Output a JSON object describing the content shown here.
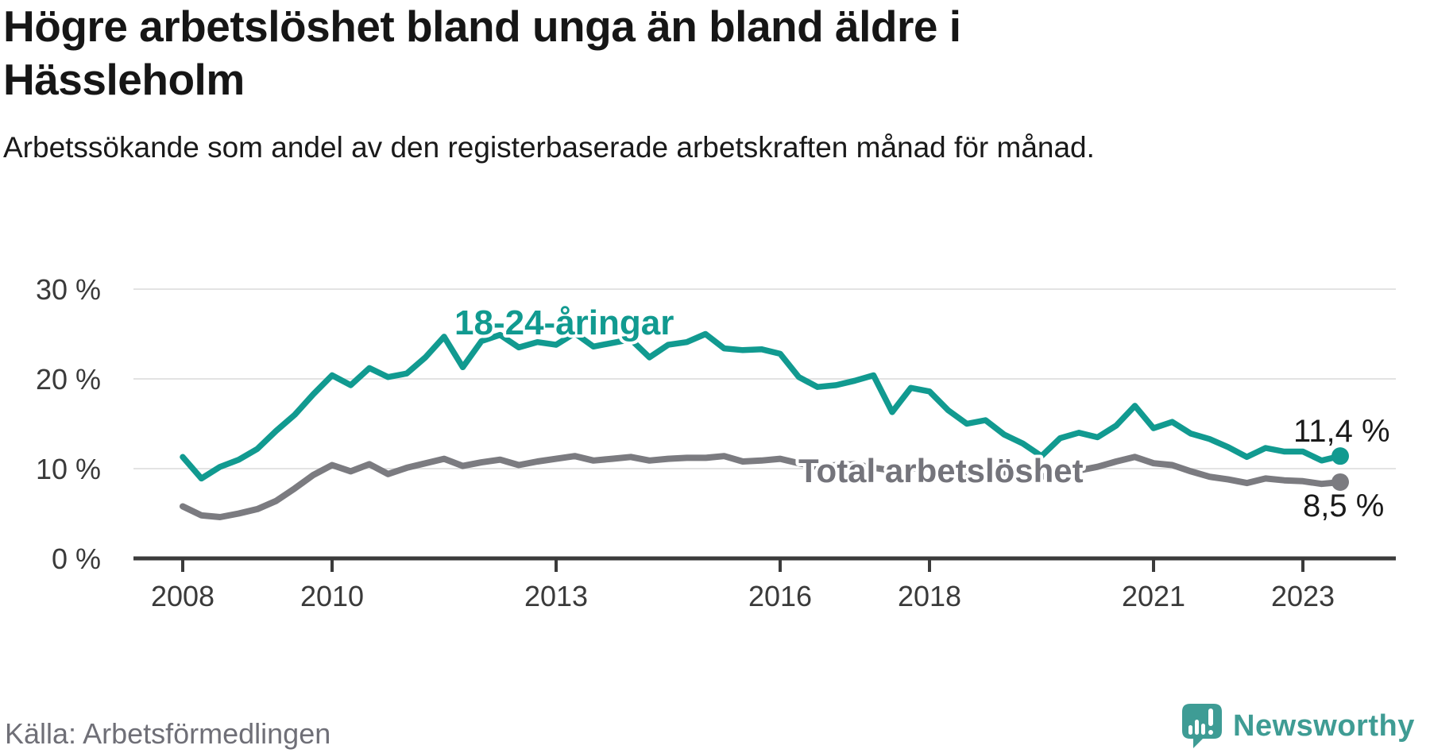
{
  "header": {
    "title": "Högre arbetslöshet bland unga än bland äldre i Hässleholm",
    "subtitle": "Arbetssökande som andel av den registerbaserade arbetskraften månad för månad."
  },
  "footer": {
    "source": "Källa: Arbetsförmedlingen",
    "brand": "Newsworthy"
  },
  "colors": {
    "young_line": "#119a90",
    "total_line": "#7b7b80",
    "total_label": "#74747b",
    "axis": "#3b3b3b",
    "grid": "#e3e3e3",
    "text": "#1a1a1a",
    "brand_teal": "#3f9c94"
  },
  "chart_data": {
    "type": "line",
    "title": "Högre arbetslöshet bland unga än bland äldre i Hässleholm",
    "subtitle": "Arbetssökande som andel av den registerbaserade arbetskraften månad för månad.",
    "source": "Källa: Arbetsförmedlingen",
    "x_unit": "decimal_year",
    "grid": "horizontal",
    "legend_position": "inline-labels",
    "ylim": [
      0,
      32
    ],
    "xlim": [
      2007.3,
      2024.4
    ],
    "y_ticks": [
      0,
      10,
      20,
      30
    ],
    "y_tick_labels": [
      "0 %",
      "10 %",
      "20 %",
      "30 %"
    ],
    "x_ticks": [
      2008,
      2010,
      2013,
      2016,
      2018,
      2021,
      2023
    ],
    "x_tick_labels": [
      "2008",
      "2010",
      "2013",
      "2016",
      "2018",
      "2021",
      "2023"
    ],
    "x": [
      2008,
      2008.25,
      2008.5,
      2008.75,
      2009,
      2009.25,
      2009.5,
      2009.75,
      2010,
      2010.25,
      2010.5,
      2010.75,
      2011,
      2011.25,
      2011.5,
      2011.75,
      2012,
      2012.25,
      2012.5,
      2012.75,
      2013,
      2013.25,
      2013.5,
      2013.75,
      2014,
      2014.25,
      2014.5,
      2014.75,
      2015,
      2015.25,
      2015.5,
      2015.75,
      2016,
      2016.25,
      2016.5,
      2016.75,
      2017,
      2017.25,
      2017.5,
      2017.75,
      2018,
      2018.25,
      2018.5,
      2018.75,
      2019,
      2019.25,
      2019.5,
      2019.75,
      2020,
      2020.25,
      2020.5,
      2020.75,
      2021,
      2021.25,
      2021.5,
      2021.75,
      2022,
      2022.25,
      2022.5,
      2022.75,
      2023,
      2023.25,
      2023.5
    ],
    "series": [
      {
        "name": "18-24-åringar",
        "color": "#119a90",
        "end_label": "11,4 %",
        "last_value": 11.4,
        "values": [
          11.3,
          8.9,
          10.2,
          11.0,
          12.2,
          14.2,
          16.0,
          18.3,
          20.4,
          19.3,
          21.2,
          20.2,
          20.6,
          22.4,
          24.7,
          21.3,
          24.2,
          24.9,
          23.5,
          24.1,
          23.8,
          25.1,
          23.6,
          24.0,
          24.4,
          22.4,
          23.8,
          24.1,
          25.0,
          23.4,
          23.2,
          23.3,
          22.8,
          20.2,
          19.1,
          19.3,
          19.8,
          20.4,
          16.3,
          19.0,
          18.6,
          16.5,
          15.0,
          15.4,
          13.8,
          12.8,
          11.4,
          13.4,
          14.0,
          13.5,
          14.8,
          17.0,
          14.5,
          15.2,
          13.9,
          13.3,
          12.4,
          11.3,
          12.3,
          11.9,
          11.9,
          10.9,
          11.4
        ]
      },
      {
        "name": "Total arbetslöshet",
        "color": "#7b7b80",
        "end_label": "8,5 %",
        "last_value": 8.5,
        "values": [
          5.8,
          4.8,
          4.6,
          5.0,
          5.5,
          6.4,
          7.8,
          9.3,
          10.4,
          9.7,
          10.5,
          9.4,
          10.1,
          10.6,
          11.1,
          10.3,
          10.7,
          11.0,
          10.4,
          10.8,
          11.1,
          11.4,
          10.9,
          11.1,
          11.3,
          10.9,
          11.1,
          11.2,
          11.2,
          11.4,
          10.8,
          10.9,
          11.1,
          10.6,
          10.2,
          10.4,
          10.5,
          10.1,
          9.8,
          10.0,
          10.1,
          9.7,
          9.5,
          9.7,
          9.6,
          9.3,
          9.1,
          9.5,
          9.8,
          10.2,
          10.8,
          11.3,
          10.6,
          10.4,
          9.7,
          9.1,
          8.8,
          8.4,
          8.9,
          8.7,
          8.6,
          8.3,
          8.5
        ]
      }
    ]
  }
}
